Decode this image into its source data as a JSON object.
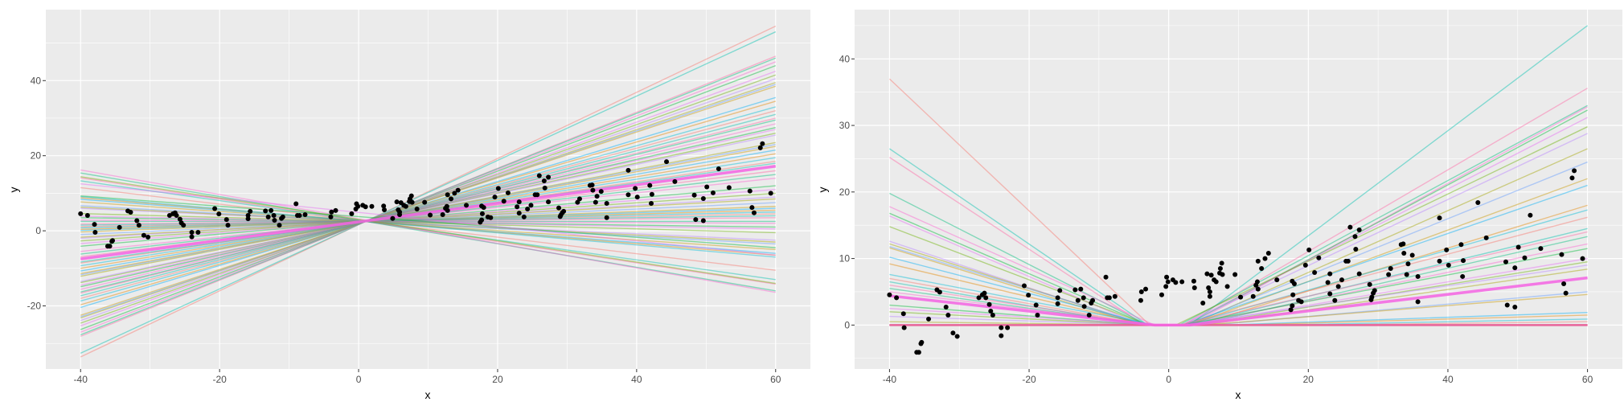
{
  "chart_data": [
    {
      "type": "line",
      "xlabel": "x",
      "ylabel": "y",
      "xlim": [
        -45,
        65
      ],
      "ylim": [
        -36.8,
        58.9
      ],
      "x_ticks": [
        "-40",
        "-20",
        "0",
        "20",
        "40",
        "60"
      ],
      "y_ticks": [
        "-20",
        "0",
        "20",
        "40"
      ],
      "x_tick_values": [
        -40,
        -20,
        0,
        20,
        40,
        60
      ],
      "y_tick_values": [
        -20,
        0,
        20,
        40
      ],
      "grid": true,
      "line_x_range": [
        -40,
        60
      ],
      "lines_y_at_ends": [
        [
          -33.6,
          54.5
        ],
        [
          -32.6,
          53
        ],
        [
          -28.1,
          46.5
        ],
        [
          -27.7,
          46
        ],
        [
          -27.0,
          45
        ],
        [
          -26.3,
          44
        ],
        [
          -25.3,
          42.5
        ],
        [
          -24.6,
          41.5
        ],
        [
          -23.9,
          40.5
        ],
        [
          -23.2,
          39.5
        ],
        [
          -22.9,
          39
        ],
        [
          -22.5,
          38.5
        ],
        [
          -20.4,
          35.5
        ],
        [
          -19.7,
          34.5
        ],
        [
          -18.7,
          33
        ],
        [
          -18.0,
          32
        ],
        [
          -17.3,
          31
        ],
        [
          -16.6,
          30
        ],
        [
          -16.3,
          29.5
        ],
        [
          -15.6,
          28.5
        ],
        [
          -14.9,
          27.5
        ],
        [
          -14.5,
          27
        ],
        [
          -13.8,
          26
        ],
        [
          -13.5,
          25.5
        ],
        [
          -12.1,
          23.5
        ],
        [
          -11.7,
          23
        ],
        [
          -11.4,
          22.5
        ],
        [
          -10.7,
          21.5
        ],
        [
          -10.0,
          20.5
        ],
        [
          -9.3,
          19.5
        ],
        [
          -8.6,
          18.5
        ],
        [
          -8.3,
          18
        ],
        [
          -6.9,
          16
        ],
        [
          -6.2,
          15
        ],
        [
          -5.5,
          14
        ],
        [
          -4.1,
          12
        ],
        [
          -3.4,
          11
        ],
        [
          -2.7,
          10
        ],
        [
          -2.0,
          9
        ],
        [
          -1.7,
          8.5
        ],
        [
          -1.0,
          7.5
        ],
        [
          -0.3,
          6.5
        ],
        [
          0.1,
          6
        ],
        [
          0.4,
          5.5
        ],
        [
          0.8,
          5
        ],
        [
          1.1,
          4.5
        ],
        [
          1.5,
          4
        ],
        [
          1.8,
          3.5
        ],
        [
          2.5,
          2.5
        ],
        [
          2.85,
          2
        ],
        [
          3.5,
          1
        ],
        [
          3.9,
          0.5
        ],
        [
          4.6,
          -0.5
        ],
        [
          6.0,
          -2.5
        ],
        [
          6.3,
          -3
        ],
        [
          6.7,
          -3.5
        ],
        [
          7.7,
          -5
        ],
        [
          8.4,
          -6
        ],
        [
          8.8,
          -6.5
        ],
        [
          9.1,
          -7
        ],
        [
          11.5,
          -10.5
        ],
        [
          13.3,
          -13
        ],
        [
          14.1,
          -14.2
        ],
        [
          15.4,
          -16
        ],
        [
          16.2,
          -16.4
        ],
        [
          9.3,
          -4.5
        ],
        [
          12.5,
          -6.5
        ],
        [
          14.4,
          -14
        ]
      ],
      "highlight_line_y_at_ends": [
        -7.5,
        17.2
      ]
    },
    {
      "type": "line",
      "xlabel": "x",
      "ylabel": "y",
      "xlim": [
        -45,
        65
      ],
      "ylim": [
        -6.6,
        47.4
      ],
      "x_ticks": [
        "-40",
        "-20",
        "0",
        "20",
        "40",
        "60"
      ],
      "y_ticks": [
        "0",
        "10",
        "20",
        "30",
        "40"
      ],
      "x_tick_values": [
        -40,
        -20,
        0,
        20,
        40,
        60
      ],
      "y_tick_values": [
        0,
        10,
        20,
        30,
        40
      ],
      "grid": true,
      "curves_left_height_knee_knee_right_height": [
        [
          37,
          -2.7,
          2.5,
          0
        ],
        [
          26.5,
          -3,
          3,
          45
        ],
        [
          25.2,
          -3.5,
          2,
          35.6
        ],
        [
          19.8,
          -3,
          1.5,
          33
        ],
        [
          17.8,
          -2,
          3,
          32.8
        ],
        [
          16.8,
          -3,
          2.5,
          32.3
        ],
        [
          16.4,
          -4,
          2,
          31.2
        ],
        [
          14.8,
          -3,
          1,
          29.8
        ],
        [
          12.6,
          -4,
          2,
          28.8
        ],
        [
          12.2,
          -3.5,
          3,
          26.5
        ],
        [
          11.8,
          -3,
          2.5,
          24.5
        ],
        [
          11.6,
          -4,
          3,
          22
        ],
        [
          10.2,
          -2.5,
          2,
          21
        ],
        [
          9.2,
          -3,
          4,
          18
        ],
        [
          7.6,
          -2,
          2.5,
          17.3
        ],
        [
          7,
          -3,
          1.5,
          16.2
        ],
        [
          6.5,
          -4,
          3,
          14.5
        ],
        [
          6,
          -2.5,
          2,
          14
        ],
        [
          5.5,
          -3,
          4,
          13.3
        ],
        [
          5,
          -2,
          3,
          12.2
        ],
        [
          3,
          -3,
          2,
          11.5
        ],
        [
          2.5,
          -2,
          3,
          10
        ],
        [
          2,
          -3,
          4,
          9.5
        ],
        [
          1.3,
          -2,
          2,
          9
        ],
        [
          0.5,
          -1,
          5,
          8.4
        ],
        [
          0,
          0,
          6,
          5
        ],
        [
          0,
          0,
          5,
          4.6
        ],
        [
          0,
          0,
          8,
          1.9
        ],
        [
          0,
          0,
          10,
          1.5
        ],
        [
          0,
          0,
          15,
          0.9
        ],
        [
          0,
          0,
          20,
          0.5
        ]
      ],
      "highlight_curve": [
        4.4,
        -2,
        3,
        7.1
      ],
      "zero_line": [
        0,
        0
      ]
    }
  ],
  "points": [
    [
      -40,
      4.55
    ],
    [
      -39,
      4.1
    ],
    [
      -38,
      1.7
    ],
    [
      -37.9,
      -0.4
    ],
    [
      -36.1,
      -4.1
    ],
    [
      -35.8,
      -4.1
    ],
    [
      -35.5,
      -2.8
    ],
    [
      -35.4,
      -2.6
    ],
    [
      -34.4,
      0.9
    ],
    [
      -33.2,
      5.3
    ],
    [
      -32.8,
      4.95
    ],
    [
      -31.9,
      2.7
    ],
    [
      -31.6,
      1.5
    ],
    [
      -30.9,
      -1.2
    ],
    [
      -30.3,
      -1.7
    ],
    [
      -27.2,
      4.1
    ],
    [
      -26.7,
      4.55
    ],
    [
      -26.4,
      4.8
    ],
    [
      -26.2,
      4.1
    ],
    [
      -25.7,
      3.1
    ],
    [
      -25.5,
      2.1
    ],
    [
      -25.2,
      1.5
    ],
    [
      -24,
      -0.4
    ],
    [
      -24,
      -1.6
    ],
    [
      -23.1,
      -0.4
    ],
    [
      -20.7,
      5.9
    ],
    [
      -20.1,
      4.5
    ],
    [
      -19,
      3
    ],
    [
      -18.8,
      1.5
    ],
    [
      -15.9,
      4.1
    ],
    [
      -15.9,
      3.2
    ],
    [
      -15.6,
      5.2
    ],
    [
      -13.4,
      5.3
    ],
    [
      -12.6,
      5.4
    ],
    [
      -13,
      3.7
    ],
    [
      -12.2,
      4.1
    ],
    [
      -12.1,
      2.8
    ],
    [
      -11.4,
      1.5
    ],
    [
      -11.1,
      3.3
    ],
    [
      -10.9,
      3.7
    ],
    [
      -9,
      7.2
    ],
    [
      -8.8,
      4.1
    ],
    [
      -8.5,
      4.1
    ],
    [
      -7.7,
      4.3
    ],
    [
      -4,
      3.7
    ],
    [
      -3.9,
      5
    ],
    [
      -3.3,
      5.4
    ],
    [
      -1,
      4.55
    ],
    [
      -0.4,
      5.8
    ],
    [
      -0.3,
      7.2
    ],
    [
      -0.1,
      6.5
    ],
    [
      0.6,
      6.8
    ],
    [
      1,
      6.4
    ],
    [
      1.9,
      6.5
    ],
    [
      3.6,
      6.6
    ],
    [
      3.7,
      5.6
    ],
    [
      4.9,
      3.3
    ],
    [
      5.5,
      7.7
    ],
    [
      5.7,
      5.6
    ],
    [
      5.9,
      5
    ],
    [
      5.9,
      4.3
    ],
    [
      6.1,
      7.5
    ],
    [
      6.5,
      6.8
    ],
    [
      6.8,
      6.5
    ],
    [
      7.3,
      7.8
    ],
    [
      7.4,
      8.5
    ],
    [
      7.6,
      9.3
    ],
    [
      7.7,
      7.6
    ],
    [
      8.4,
      5.8
    ],
    [
      9.5,
      7.6
    ],
    [
      10.3,
      4.2
    ],
    [
      12.1,
      4.3
    ],
    [
      12.5,
      6
    ],
    [
      12.7,
      6.5
    ],
    [
      12.8,
      5.4
    ],
    [
      12.8,
      9.6
    ],
    [
      13.3,
      8.5
    ],
    [
      13.8,
      10
    ],
    [
      14.3,
      10.8
    ],
    [
      15.5,
      6.8
    ],
    [
      17.5,
      2.3
    ],
    [
      17.7,
      2.9
    ],
    [
      17.7,
      6.6
    ],
    [
      17.8,
      4.55
    ],
    [
      18,
      6.2
    ],
    [
      18.6,
      3.7
    ],
    [
      19,
      3.5
    ],
    [
      19.6,
      9
    ],
    [
      20.1,
      11.3
    ],
    [
      20.9,
      7.9
    ],
    [
      21.5,
      10.1
    ],
    [
      22.8,
      6.4
    ],
    [
      23.1,
      7.7
    ],
    [
      23.1,
      4.7
    ],
    [
      23.8,
      3.7
    ],
    [
      24.3,
      5.8
    ],
    [
      24.8,
      6.8
    ],
    [
      25.4,
      9.6
    ],
    [
      25.7,
      9.6
    ],
    [
      26,
      14.7
    ],
    [
      26.7,
      13.3
    ],
    [
      26.8,
      11.4
    ],
    [
      27.3,
      14.3
    ],
    [
      27.3,
      7.7
    ],
    [
      28.8,
      6.1
    ],
    [
      29,
      3.8
    ],
    [
      29.1,
      4.2
    ],
    [
      29.3,
      4.8
    ],
    [
      29.5,
      5.2
    ],
    [
      31.5,
      7.6
    ],
    [
      31.8,
      8.5
    ],
    [
      33.3,
      12.1
    ],
    [
      33.6,
      12.2
    ],
    [
      33.7,
      10.8
    ],
    [
      34.1,
      7.6
    ],
    [
      34.3,
      9.2
    ],
    [
      34.9,
      10.5
    ],
    [
      35.7,
      7.3
    ],
    [
      35.7,
      3.5
    ],
    [
      38.8,
      16.1
    ],
    [
      38.8,
      9.6
    ],
    [
      39.8,
      11.3
    ],
    [
      40.1,
      9
    ],
    [
      41.9,
      12.1
    ],
    [
      42.1,
      7.3
    ],
    [
      42.2,
      9.7
    ],
    [
      44.3,
      18.4
    ],
    [
      45.5,
      13.1
    ],
    [
      48.3,
      9.5
    ],
    [
      48.5,
      3
    ],
    [
      49.6,
      8.6
    ],
    [
      49.6,
      2.7
    ],
    [
      50.1,
      11.7
    ],
    [
      51,
      10.1
    ],
    [
      51.8,
      16.5
    ],
    [
      53.3,
      11.5
    ],
    [
      56.3,
      10.6
    ],
    [
      56.6,
      6.2
    ],
    [
      56.9,
      4.8
    ],
    [
      57.8,
      22.1
    ],
    [
      58.1,
      23.2
    ],
    [
      59.3,
      10
    ]
  ],
  "colors": {
    "panel_background": "#EBEBEB",
    "grid": "#FFFFFF",
    "points": "#000000",
    "highlight": "#F564E3",
    "palette": [
      "#F8766D",
      "#E58700",
      "#C99800",
      "#A3A500",
      "#6BB100",
      "#00BA38",
      "#00BF7D",
      "#00C0AF",
      "#00BCD8",
      "#00B0F6",
      "#619CFF",
      "#B983FF",
      "#E76BF3",
      "#FD61D1",
      "#FF67A4"
    ]
  }
}
